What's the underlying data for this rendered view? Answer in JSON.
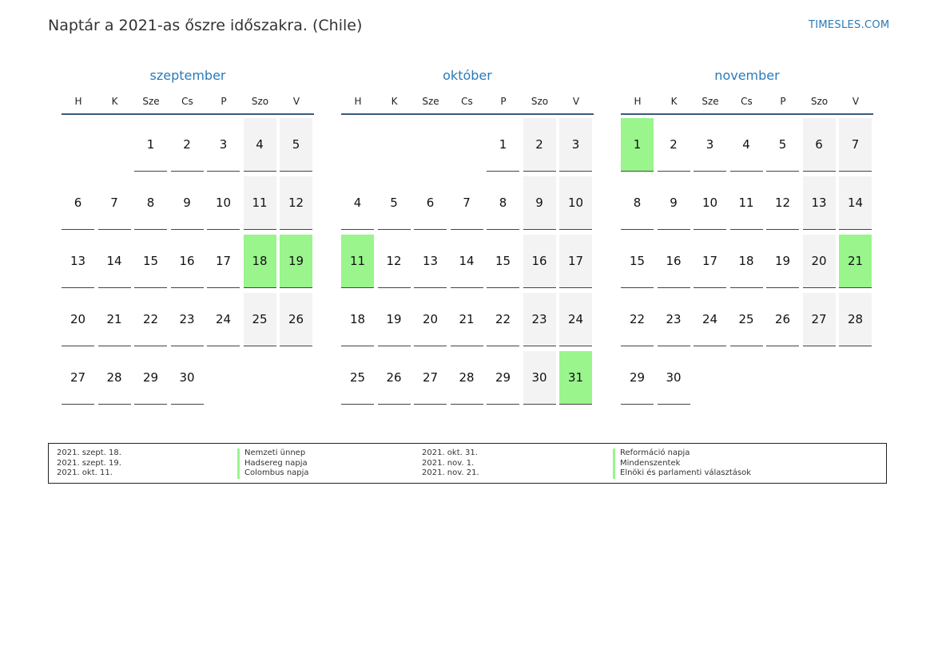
{
  "title": "Naptár a 2021-as őszre időszakra. (Chile)",
  "brand": "TIMESLES.COM",
  "weekday_labels": [
    "H",
    "K",
    "Sze",
    "Cs",
    "P",
    "Szo",
    "V"
  ],
  "accent_color": "#2a7ab8",
  "holiday_color": "#99f58c",
  "weekend_color": "#f3f3f3",
  "months": [
    {
      "name": "szeptember",
      "start_offset": 2,
      "days": 30,
      "holidays": [
        18,
        19
      ]
    },
    {
      "name": "október",
      "start_offset": 4,
      "days": 31,
      "holidays": [
        11,
        31
      ]
    },
    {
      "name": "november",
      "start_offset": 0,
      "days": 30,
      "holidays": [
        1,
        21
      ]
    }
  ],
  "legend": [
    {
      "date": "2021. szept. 18.",
      "name": "Nemzeti ünnep"
    },
    {
      "date": "2021. szept. 19.",
      "name": "Hadsereg napja"
    },
    {
      "date": "2021. okt. 11.",
      "name": "Colombus napja"
    },
    {
      "date": "2021. okt. 31.",
      "name": "Reformáció napja"
    },
    {
      "date": "2021. nov. 1.",
      "name": "Mindenszentek"
    },
    {
      "date": "2021. nov. 21.",
      "name": "Elnöki és parlamenti választások"
    }
  ]
}
